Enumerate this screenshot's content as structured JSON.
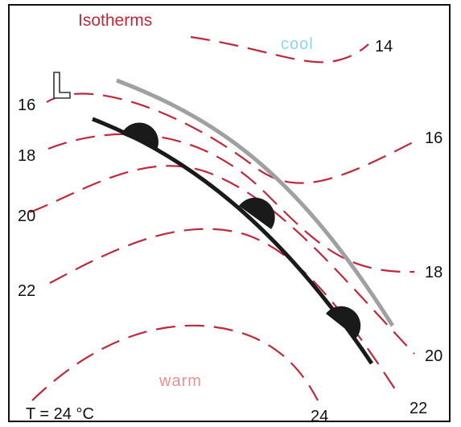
{
  "title": "Isotherms",
  "air_masses": {
    "cool": "cool",
    "warm": "warm"
  },
  "low_pressure_symbol": "L",
  "isotherm_labels": {
    "left": [
      "16",
      "18",
      "20",
      "22"
    ],
    "right": [
      "14",
      "16",
      "18",
      "20",
      "22",
      "24"
    ]
  },
  "temperature_readout": "T = 24 °C",
  "colors": {
    "isotherm": "#c0283a",
    "title": "#c0283a",
    "cool": "#8fd4ea",
    "warm": "#f08f8f",
    "front_line": "#1a1a1a",
    "front_outline": "#a0a0a0",
    "frame": "#111111",
    "text": "#111111"
  }
}
